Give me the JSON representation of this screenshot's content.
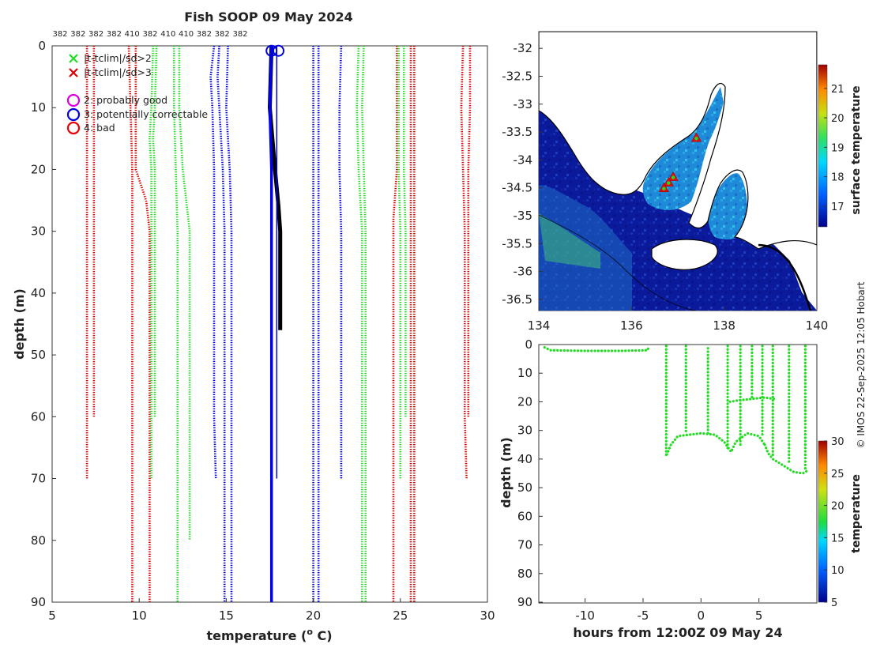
{
  "chart_data": [
    {
      "id": "profile",
      "type": "line",
      "title": "Fish SOOP 09 May 2024",
      "xlabel": "temperature (",
      "xlabel_sup": "o",
      "xlabel_suffix": " C)",
      "ylabel": "depth (m)",
      "xlim": [
        5,
        30
      ],
      "ylim": [
        0,
        90
      ],
      "xticks": [
        5,
        10,
        15,
        20,
        25,
        30
      ],
      "yticks": [
        0,
        10,
        20,
        30,
        40,
        50,
        60,
        70,
        80,
        90
      ],
      "top_labels": [
        "382",
        "382",
        "382",
        "382",
        "410",
        "382",
        "410",
        "410",
        "382",
        "382",
        "382"
      ],
      "legend": [
        {
          "marker": "x",
          "color": "#22dd22",
          "label": "|t-tclim|/sd>2"
        },
        {
          "marker": "x",
          "color": "#dd0000",
          "label": "|t-tclim|/sd>3"
        },
        {
          "marker": "o",
          "color": "#dd00dd",
          "label": "2: probably good"
        },
        {
          "marker": "o",
          "color": "#0000dd",
          "label": "3: potentially correctable"
        },
        {
          "marker": "o",
          "color": "#ee0000",
          "label": "4: bad"
        }
      ],
      "climatology": [
        {
          "color": "#dd0000",
          "points": [
            [
              7.0,
              0
            ],
            [
              7.0,
              60
            ],
            [
              7.0,
              70
            ]
          ]
        },
        {
          "color": "#dd0000",
          "points": [
            [
              7.4,
              0
            ],
            [
              7.4,
              60
            ],
            [
              7.4,
              60
            ]
          ]
        },
        {
          "color": "#dd0000",
          "points": [
            [
              9.4,
              0
            ],
            [
              9.5,
              10
            ],
            [
              9.6,
              20
            ],
            [
              9.6,
              90
            ]
          ]
        },
        {
          "color": "#dd0000",
          "points": [
            [
              9.8,
              0
            ],
            [
              9.8,
              10
            ],
            [
              9.8,
              20
            ],
            [
              10.4,
              25
            ],
            [
              10.6,
              30
            ],
            [
              10.6,
              90
            ]
          ]
        },
        {
          "color": "#dd0000",
          "points": [
            [
              24.8,
              0
            ],
            [
              24.8,
              20
            ],
            [
              24.6,
              28
            ],
            [
              24.6,
              90
            ]
          ]
        },
        {
          "color": "#dd0000",
          "points": [
            [
              25.6,
              0
            ],
            [
              25.6,
              90
            ]
          ]
        },
        {
          "color": "#dd0000",
          "points": [
            [
              25.8,
              0
            ],
            [
              25.8,
              90
            ]
          ]
        },
        {
          "color": "#dd0000",
          "points": [
            [
              28.6,
              0
            ],
            [
              28.5,
              10
            ],
            [
              28.6,
              20
            ],
            [
              28.7,
              30
            ],
            [
              28.7,
              60
            ],
            [
              28.8,
              70
            ]
          ]
        },
        {
          "color": "#dd0000",
          "points": [
            [
              29.0,
              0
            ],
            [
              29.0,
              10
            ],
            [
              28.9,
              20
            ],
            [
              28.9,
              30
            ],
            [
              28.9,
              60
            ]
          ]
        },
        {
          "color": "#22dd22",
          "points": [
            [
              10.8,
              0
            ],
            [
              10.7,
              10
            ],
            [
              10.6,
              15
            ],
            [
              10.7,
              20
            ],
            [
              10.7,
              60
            ],
            [
              10.7,
              70
            ]
          ]
        },
        {
          "color": "#22dd22",
          "points": [
            [
              11.0,
              0
            ],
            [
              10.9,
              10
            ],
            [
              10.8,
              15
            ],
            [
              10.9,
              20
            ],
            [
              10.9,
              60
            ]
          ]
        },
        {
          "color": "#22dd22",
          "points": [
            [
              12.0,
              0
            ],
            [
              12.0,
              10
            ],
            [
              12.1,
              20
            ],
            [
              12.2,
              30
            ],
            [
              12.2,
              90
            ]
          ]
        },
        {
          "color": "#22dd22",
          "points": [
            [
              12.3,
              0
            ],
            [
              12.3,
              10
            ],
            [
              12.5,
              20
            ],
            [
              12.9,
              30
            ],
            [
              12.9,
              80
            ]
          ]
        },
        {
          "color": "#22dd22",
          "points": [
            [
              22.6,
              0
            ],
            [
              22.5,
              10
            ],
            [
              22.6,
              20
            ],
            [
              22.8,
              30
            ],
            [
              22.8,
              90
            ]
          ]
        },
        {
          "color": "#22dd22",
          "points": [
            [
              22.9,
              0
            ],
            [
              22.8,
              10
            ],
            [
              22.9,
              20
            ],
            [
              23.0,
              30
            ],
            [
              23.0,
              80
            ],
            [
              23.0,
              90
            ]
          ]
        },
        {
          "color": "#22dd22",
          "points": [
            [
              24.9,
              0
            ],
            [
              24.9,
              10
            ],
            [
              24.9,
              20
            ],
            [
              25.0,
              30
            ],
            [
              25.0,
              70
            ]
          ]
        },
        {
          "color": "#22dd22",
          "points": [
            [
              25.2,
              0
            ],
            [
              25.2,
              10
            ],
            [
              25.2,
              20
            ],
            [
              25.3,
              30
            ],
            [
              25.3,
              60
            ]
          ]
        },
        {
          "color": "#0000dd",
          "points": [
            [
              14.3,
              0
            ],
            [
              14.1,
              5
            ],
            [
              14.2,
              10
            ],
            [
              14.3,
              20
            ],
            [
              14.3,
              60
            ],
            [
              14.4,
              70
            ]
          ]
        },
        {
          "color": "#0000dd",
          "points": [
            [
              14.6,
              0
            ],
            [
              14.5,
              5
            ],
            [
              14.6,
              10
            ],
            [
              14.8,
              20
            ],
            [
              14.9,
              30
            ],
            [
              14.9,
              90
            ]
          ]
        },
        {
          "color": "#0000dd",
          "points": [
            [
              15.1,
              0
            ],
            [
              15.0,
              10
            ],
            [
              15.2,
              20
            ],
            [
              15.3,
              30
            ],
            [
              15.3,
              90
            ]
          ]
        },
        {
          "color": "#0000dd",
          "points": [
            [
              20.0,
              0
            ],
            [
              20.0,
              90
            ]
          ]
        },
        {
          "color": "#0000dd",
          "points": [
            [
              20.3,
              0
            ],
            [
              20.3,
              90
            ]
          ]
        },
        {
          "color": "#0000dd",
          "points": [
            [
              21.6,
              0
            ],
            [
              21.5,
              10
            ],
            [
              21.5,
              20
            ],
            [
              21.6,
              30
            ],
            [
              21.6,
              70
            ]
          ]
        }
      ],
      "series": [
        {
          "name": "black profile",
          "color": "#000000",
          "points": [
            [
              17.6,
              0
            ],
            [
              17.5,
              10
            ],
            [
              17.8,
              20
            ],
            [
              18.0,
              26
            ],
            [
              18.1,
              30
            ],
            [
              18.1,
              46
            ]
          ]
        },
        {
          "name": "blue profile",
          "color": "#0000ee",
          "points": [
            [
              17.6,
              0
            ],
            [
              17.5,
              10
            ],
            [
              17.6,
              20
            ],
            [
              17.6,
              90
            ]
          ]
        },
        {
          "name": "thin blue",
          "color": "#0000ee",
          "points": [
            [
              17.9,
              0
            ],
            [
              17.9,
              30
            ],
            [
              17.9,
              70
            ]
          ]
        }
      ],
      "flag_markers": [
        [
          17.6,
          0.8
        ],
        [
          18.0,
          0.8
        ]
      ]
    },
    {
      "id": "map",
      "type": "heatmap",
      "xlim": [
        134,
        140
      ],
      "ylim": [
        -36.7,
        -31.7
      ],
      "xticks": [
        134,
        136,
        138,
        140
      ],
      "yticks": [
        -32,
        -32.5,
        -33,
        -33.5,
        -34,
        -34.5,
        -35,
        -35.5,
        -36,
        -36.5
      ],
      "colorbar_label": "surface temperature",
      "colorbar_range": [
        16.3,
        21.8
      ],
      "colorbar_ticks": [
        17,
        18,
        19,
        20,
        21
      ],
      "track_points": [
        [
          137.4,
          -33.6
        ],
        [
          136.9,
          -34.3
        ],
        [
          136.8,
          -34.4
        ],
        [
          136.7,
          -34.5
        ]
      ]
    },
    {
      "id": "timeseries",
      "type": "scatter",
      "xlabel": "hours from 12:00Z 09 May 24",
      "ylabel": "depth (m)",
      "xlim": [
        -14,
        10
      ],
      "ylim": [
        0,
        90
      ],
      "xticks": [
        -10,
        -5,
        0,
        5
      ],
      "yticks": [
        0,
        10,
        20,
        30,
        40,
        50,
        60,
        70,
        80,
        90
      ],
      "colorbar_label": "temperature",
      "colorbar_range": [
        5,
        30
      ],
      "colorbar_ticks": [
        5,
        10,
        15,
        20,
        25,
        30
      ],
      "series": [
        {
          "name": "surface tow",
          "color": "#22dd22",
          "points": [
            [
              -13.5,
              1
            ],
            [
              -13,
              2
            ],
            [
              -10,
              2.2
            ],
            [
              -7,
              2.2
            ],
            [
              -4.6,
              2
            ],
            [
              -4.5,
              0.5
            ]
          ]
        },
        {
          "name": "mid tow",
          "color": "#22dd22",
          "points": [
            [
              -3,
              0.5
            ],
            [
              -3,
              39
            ],
            [
              -2.6,
              35
            ],
            [
              -2,
              32
            ],
            [
              0,
              31
            ],
            [
              1.2,
              31.5
            ],
            [
              2,
              34
            ],
            [
              2.6,
              37.5
            ],
            [
              3,
              34
            ],
            [
              4,
              31
            ],
            [
              5,
              32
            ],
            [
              5.5,
              35
            ]
          ]
        },
        {
          "name": "deep tow",
          "color": "#22dd22",
          "points": [
            [
              5.5,
              35
            ],
            [
              5.8,
              38
            ],
            [
              6.2,
              40
            ],
            [
              7,
              42
            ],
            [
              8,
              44.5
            ],
            [
              8.8,
              45
            ],
            [
              9.2,
              44
            ]
          ]
        },
        {
          "name": "verticals",
          "color": "#22dd22",
          "points": [
            [
              -1.3,
              0.5
            ],
            [
              -1.3,
              31
            ],
            [
              0.6,
              31
            ],
            [
              0.6,
              0.5
            ],
            [
              2.3,
              0.5
            ],
            [
              2.3,
              37
            ],
            [
              3.4,
              0.5
            ],
            [
              3.4,
              36
            ],
            [
              4.4,
              0.5
            ],
            [
              4.4,
              19
            ],
            [
              5.3,
              0.5
            ],
            [
              5.3,
              32
            ],
            [
              6.2,
              0.5
            ],
            [
              6.2,
              39
            ],
            [
              7.6,
              0.5
            ],
            [
              7.6,
              42
            ],
            [
              9.0,
              0.5
            ],
            [
              9.0,
              44
            ]
          ]
        },
        {
          "name": "20m segment",
          "color": "#22dd22",
          "points": [
            [
              2.5,
              20
            ],
            [
              3.2,
              19.5
            ],
            [
              4.4,
              19
            ],
            [
              5.5,
              18.5
            ],
            [
              6.3,
              19
            ]
          ]
        }
      ]
    }
  ],
  "watermark": "© IMOS 22-Sep-2025 12:05 Hobart"
}
